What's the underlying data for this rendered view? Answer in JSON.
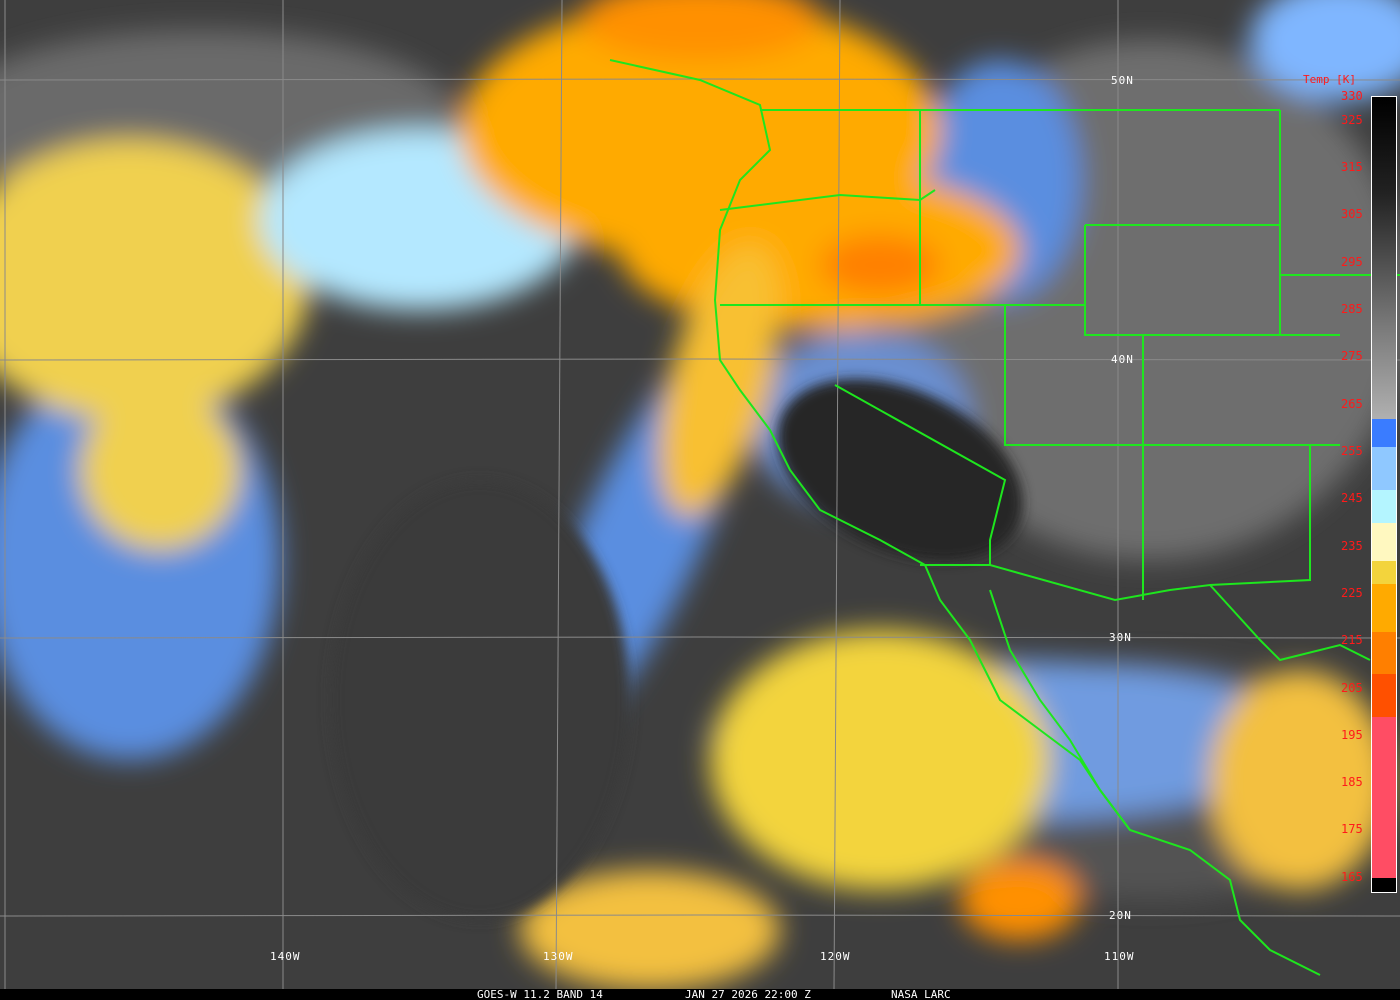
{
  "footer": {
    "satellite": "GOES-W 11.2 BAND 14",
    "datetime": "JAN 27 2026 22:00 Z",
    "credit": "NASA LARC"
  },
  "grid_labels": {
    "lat": [
      "50N",
      "40N",
      "30N",
      "20N"
    ],
    "lon": [
      "140W",
      "130W",
      "120W",
      "110W"
    ]
  },
  "colorbar": {
    "title": "Temp [K]",
    "labels": [
      "330",
      "325",
      "315",
      "305",
      "295",
      "285",
      "275",
      "265",
      "255",
      "245",
      "235",
      "225",
      "215",
      "205",
      "195",
      "185",
      "175",
      "165"
    ],
    "range_k": [
      162,
      330
    ],
    "stops": [
      {
        "from": 330,
        "to": 262,
        "color": "gradient-black-to-gray"
      },
      {
        "from": 262,
        "to": 256,
        "color": "#3a7cff"
      },
      {
        "from": 256,
        "to": 247,
        "color": "#8fc8ff"
      },
      {
        "from": 247,
        "to": 240,
        "color": "#b4f5ff"
      },
      {
        "from": 240,
        "to": 232,
        "color": "#fff8c0"
      },
      {
        "from": 232,
        "to": 227,
        "color": "#f3d43c"
      },
      {
        "from": 227,
        "to": 217,
        "color": "#ffaa00"
      },
      {
        "from": 217,
        "to": 208,
        "color": "#ff7f00"
      },
      {
        "from": 208,
        "to": 199,
        "color": "#ff5000"
      },
      {
        "from": 199,
        "to": 165,
        "color": "#ff4d64"
      },
      {
        "from": 165,
        "to": 162,
        "color": "#000000"
      }
    ]
  },
  "colors": {
    "borders": "#1ee61e",
    "grid": "#8a8a8a",
    "labels": "#ffffff",
    "colorbar_text": "#ff1a1a"
  }
}
